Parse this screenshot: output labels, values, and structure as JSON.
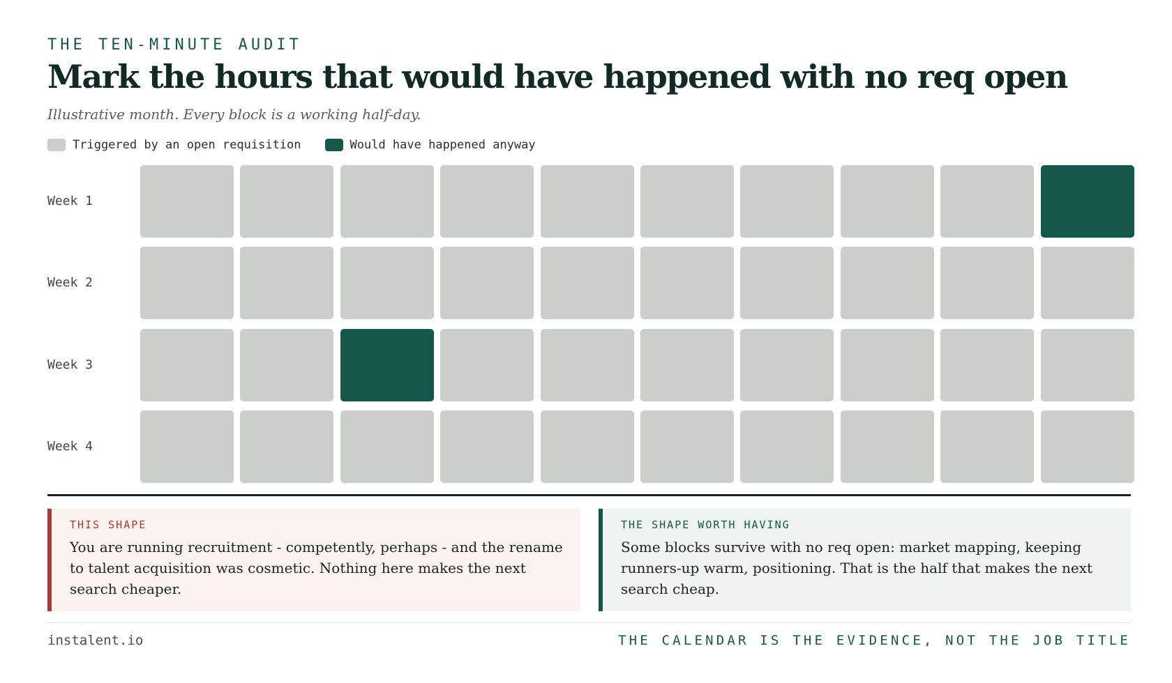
{
  "header": {
    "kicker": "THE TEN-MINUTE AUDIT",
    "title": "Mark the hours that would have happened with no req open",
    "subtitle": "Illustrative month. Every block is a working half-day."
  },
  "colors": {
    "triggered": "#cbcfcc",
    "anyway": "#15574a",
    "bad_accent": "#a63c31",
    "good_accent": "#15574a"
  },
  "legend": [
    {
      "label": "Triggered by an open requisition",
      "key": "triggered"
    },
    {
      "label": "Would have happened anyway",
      "key": "anyway"
    }
  ],
  "calendar": {
    "weeks": [
      {
        "label": "Week 1",
        "blocks": [
          "triggered",
          "triggered",
          "triggered",
          "triggered",
          "triggered",
          "triggered",
          "triggered",
          "triggered",
          "triggered",
          "anyway"
        ]
      },
      {
        "label": "Week 2",
        "blocks": [
          "triggered",
          "triggered",
          "triggered",
          "triggered",
          "triggered",
          "triggered",
          "triggered",
          "triggered",
          "triggered",
          "triggered"
        ]
      },
      {
        "label": "Week 3",
        "blocks": [
          "triggered",
          "triggered",
          "anyway",
          "triggered",
          "triggered",
          "triggered",
          "triggered",
          "triggered",
          "triggered",
          "triggered"
        ]
      },
      {
        "label": "Week 4",
        "blocks": [
          "triggered",
          "triggered",
          "triggered",
          "triggered",
          "triggered",
          "triggered",
          "triggered",
          "triggered",
          "triggered",
          "triggered"
        ]
      }
    ]
  },
  "cards": {
    "bad": {
      "label": "THIS SHAPE",
      "text": "You are running recruitment - competently, perhaps - and the rename to talent acquisition was cosmetic. Nothing here makes the next search cheaper."
    },
    "good": {
      "label": "THE SHAPE WORTH HAVING",
      "text": "Some blocks survive with no req open: market mapping, keeping runners-up warm, positioning. That is the half that makes the next search cheap."
    }
  },
  "footer": {
    "site": "instalent.io",
    "tagline": "THE CALENDAR IS THE EVIDENCE, NOT THE JOB TITLE"
  }
}
